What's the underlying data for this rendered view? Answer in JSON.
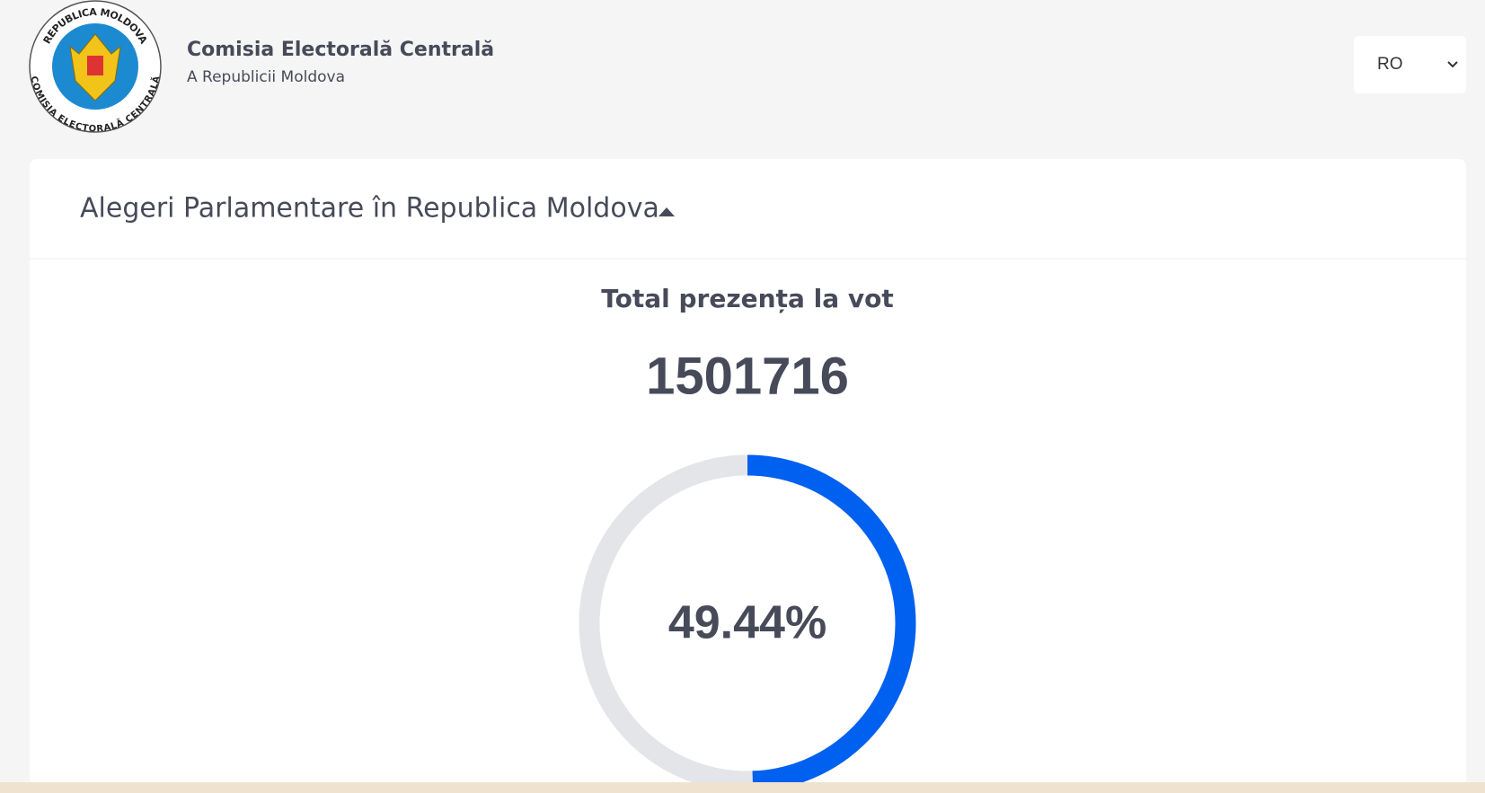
{
  "header": {
    "title": "Comisia Electorală Centrală",
    "subtitle": "A Republicii Moldova",
    "logo_top": "REPUBLICA MOLDOVA",
    "logo_bottom": "COMISIA ELECTORALĂ CENTRALĂ",
    "language": "RO"
  },
  "card": {
    "heading": "Alegeri Parlamentare în Republica Moldova",
    "turnout_title": "Total prezența la vot",
    "turnout_total": 1501716,
    "turnout_percent": {
      "value": 49.44,
      "label": "49.44%"
    },
    "gauge_max": 100
  }
}
